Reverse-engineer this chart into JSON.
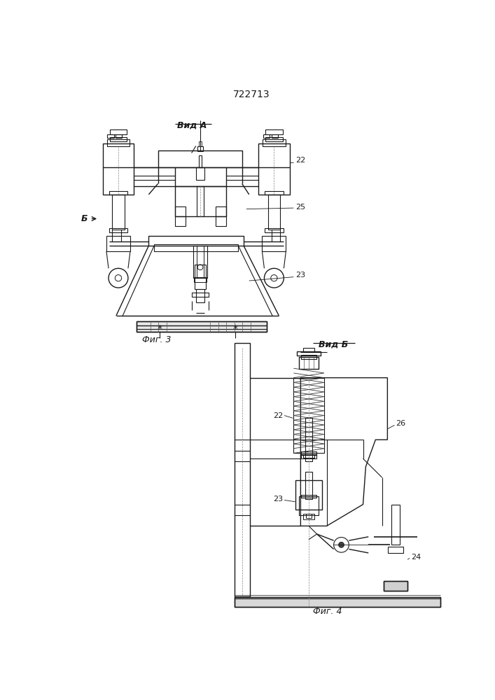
{
  "title": "722713",
  "bg_color": "#ffffff",
  "line_color": "#1a1a1a",
  "fig1_label": "Вид А",
  "fig2_label": "Вид Б",
  "fig3_caption": "Фиг. 3",
  "fig4_caption": "Фиг. 4",
  "arrow_label": "Б"
}
